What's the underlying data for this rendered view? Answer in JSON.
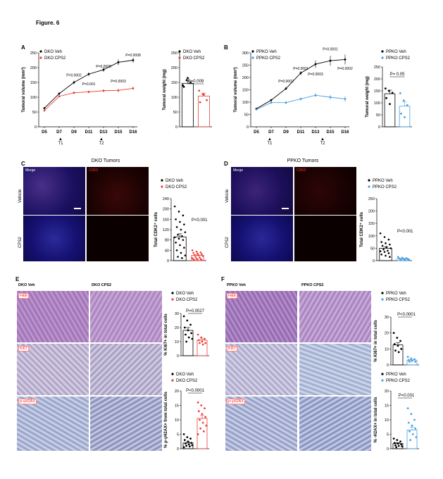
{
  "figure_title": "Figure. 6",
  "panels": {
    "A": "A",
    "B": "B",
    "C": "C",
    "D": "D",
    "E": "E",
    "F": "F"
  },
  "treatment_markers": [
    "T1",
    "T2"
  ],
  "C": {
    "title": "DKO Tumors",
    "row_labels": [
      "Vehicle",
      "CPS2"
    ],
    "col_labels": [
      "Merge",
      "CDK2"
    ]
  },
  "D": {
    "title": "PPKO Tumors",
    "row_labels": [
      "Vehicle",
      "CPS2"
    ],
    "col_labels": [
      "Merge",
      "CDK2"
    ]
  },
  "E": {
    "col_labels": [
      "DKO Veh",
      "DKO CPS2"
    ],
    "stain_labels": [
      "H&E",
      "Ki67",
      "p-γH2AX"
    ]
  },
  "F": {
    "col_labels": [
      "PPKO Veh",
      "PPKO CPS2"
    ],
    "stain_labels": [
      "H&E",
      "Ki67",
      "p-γH2AX"
    ]
  },
  "colors": {
    "veh_black": "#000000",
    "dko_cps2_red": "#e8403a",
    "ppko_cps2_blue": "#4a9fe0",
    "ihc_red": "#ff2222"
  },
  "chart_data": [
    {
      "id": "A-volume",
      "type": "line",
      "x": [
        "D5",
        "D7",
        "D9",
        "D11",
        "D13",
        "D15",
        "D16"
      ],
      "ylabel": "Tumoral volume (mm³)",
      "yticks": [
        0,
        50,
        100,
        150,
        200,
        250
      ],
      "ylim": [
        0,
        250
      ],
      "series": [
        {
          "name": "DKO Veh",
          "color": "#000000",
          "values": [
            63,
            112,
            150,
            178,
            193,
            218,
            225
          ],
          "err": [
            3,
            4,
            6,
            6,
            7,
            10,
            8
          ]
        },
        {
          "name": "DKO CPS2",
          "color": "#e8403a",
          "values": [
            55,
            103,
            115,
            118,
            122,
            123,
            130
          ],
          "err": [
            3,
            3,
            4,
            4,
            5,
            6,
            5
          ]
        }
      ],
      "annotations": [
        {
          "text": "P=0.0002",
          "x": 2,
          "y": 170
        },
        {
          "text": "P=0.001",
          "x": 3,
          "y": 140
        },
        {
          "text": "P=0.0008",
          "x": 4,
          "y": 200
        },
        {
          "text": "P=0.0003",
          "x": 5,
          "y": 150
        },
        {
          "text": "P=0.0008",
          "x": 6,
          "y": 238
        }
      ]
    },
    {
      "id": "A-weight",
      "type": "bar",
      "ylabel": "Tumoral weight (mg)",
      "yticks": [
        0,
        50,
        100,
        150,
        200,
        250
      ],
      "ylim": [
        0,
        250
      ],
      "pvalue": "P=0.009",
      "series": [
        {
          "name": "DKO Veh",
          "color": "#000000",
          "values": [
            147
          ],
          "err": [
            8
          ],
          "points": [
            140,
            158,
            150,
            135,
            165
          ]
        },
        {
          "name": "DKO CPS2",
          "color": "#e8403a",
          "values": [
            104
          ],
          "err": [
            10
          ],
          "points": [
            122,
            110,
            90,
            83,
            108
          ]
        }
      ]
    },
    {
      "id": "B-volume",
      "type": "line",
      "x": [
        "D5",
        "D7",
        "D9",
        "D11",
        "D13",
        "D15",
        "D16"
      ],
      "ylabel": "Tumoral volume (mm³)",
      "yticks": [
        0,
        50,
        100,
        150,
        200,
        250,
        300
      ],
      "ylim": [
        0,
        300
      ],
      "series": [
        {
          "name": "PPKO Veh",
          "color": "#000000",
          "values": [
            73,
            108,
            155,
            218,
            254,
            268,
            273
          ],
          "err": [
            3,
            4,
            6,
            8,
            15,
            20,
            20
          ]
        },
        {
          "name": "PPKO CPS2",
          "color": "#4a9fe0",
          "values": [
            70,
            98,
            98,
            113,
            128,
            120,
            113
          ],
          "err": [
            3,
            4,
            5,
            6,
            8,
            10,
            12
          ]
        }
      ],
      "annotations": [
        {
          "text": "P=0.0002",
          "x": 2,
          "y": 180
        },
        {
          "text": "P=0.0001",
          "x": 3,
          "y": 232
        },
        {
          "text": "P=0.0003",
          "x": 4,
          "y": 208
        },
        {
          "text": "P=0.0001",
          "x": 5,
          "y": 310
        },
        {
          "text": "P=0.0002",
          "x": 6,
          "y": 232
        }
      ]
    },
    {
      "id": "B-weight",
      "type": "bar",
      "ylabel": "Tumoral weight (mg)",
      "yticks": [
        0,
        50,
        100,
        150,
        200,
        250
      ],
      "ylim": [
        0,
        250
      ],
      "pvalue": "P= 0.05",
      "series": [
        {
          "name": "PPKO Veh",
          "color": "#000000",
          "values": [
            138
          ],
          "err": [
            15
          ],
          "points": [
            160,
            150,
            142,
            120,
            95
          ]
        },
        {
          "name": "PPKO CPS2",
          "color": "#4a9fe0",
          "values": [
            86
          ],
          "err": [
            18
          ],
          "points": [
            140,
            110,
            90,
            55,
            40
          ]
        }
      ]
    },
    {
      "id": "C-cdk2",
      "type": "bar",
      "ylabel": "Total CDK2⁺ cells",
      "yticks": [
        0,
        40,
        80,
        120,
        160,
        200,
        240
      ],
      "ylim": [
        0,
        240
      ],
      "pvalue": "P<0.001",
      "series": [
        {
          "name": "DKO Veh",
          "color": "#000000",
          "values": [
            92
          ],
          "err": [
            12
          ],
          "points": [
            210,
            190,
            175,
            160,
            150,
            140,
            130,
            120,
            110,
            100,
            95,
            90,
            85,
            80,
            70,
            60,
            50,
            40,
            30,
            20,
            15,
            10
          ]
        },
        {
          "name": "DKO CPS2",
          "color": "#e8403a",
          "values": [
            20
          ],
          "err": [
            3
          ],
          "points": [
            40,
            35,
            32,
            30,
            28,
            25,
            22,
            20,
            18,
            15,
            12,
            10,
            8,
            6,
            5,
            4,
            3,
            2
          ]
        }
      ]
    },
    {
      "id": "D-cdk2",
      "type": "bar",
      "ylabel": "Total CDK2⁺ cells",
      "yticks": [
        0,
        50,
        100,
        150,
        200,
        250
      ],
      "ylim": [
        0,
        250
      ],
      "pvalue": "P<0.001",
      "series": [
        {
          "name": "PPKO Veh",
          "color": "#000000",
          "values": [
            50
          ],
          "err": [
            6
          ],
          "points": [
            110,
            95,
            85,
            75,
            70,
            65,
            60,
            55,
            50,
            45,
            40,
            38,
            35,
            30,
            25,
            20,
            15
          ]
        },
        {
          "name": "PPKO CPS2",
          "color": "#4a9fe0",
          "values": [
            8
          ],
          "err": [
            1
          ],
          "points": [
            15,
            12,
            10,
            9,
            8,
            7,
            6,
            5,
            4,
            3,
            2
          ]
        }
      ]
    },
    {
      "id": "E-ki67",
      "type": "bar",
      "ylabel": "% Ki67+ in total cells",
      "yticks": [
        0,
        10,
        20,
        30
      ],
      "ylim": [
        0,
        30
      ],
      "pvalue": "P=0.0027",
      "series": [
        {
          "name": "DKO Veh",
          "color": "#000000",
          "values": [
            18
          ],
          "err": [
            2
          ],
          "points": [
            28,
            25,
            22,
            20,
            18,
            16,
            15,
            13,
            12,
            10
          ]
        },
        {
          "name": "DKO CPS2",
          "color": "#e8403a",
          "values": [
            11
          ],
          "err": [
            1
          ],
          "points": [
            15,
            13,
            12,
            11,
            10,
            9,
            9,
            8
          ]
        }
      ]
    },
    {
      "id": "E-h2ax",
      "type": "bar",
      "ylabel": "% p-γH2AX+ from total cells",
      "yticks": [
        0,
        5,
        10,
        15,
        20
      ],
      "ylim": [
        0,
        20
      ],
      "pvalue": "P<0.0001",
      "series": [
        {
          "name": "DKO Veh",
          "color": "#000000",
          "values": [
            2
          ],
          "err": [
            0.4
          ],
          "points": [
            5,
            4,
            3.5,
            3,
            2.5,
            2,
            1.8,
            1.5,
            1.2,
            1,
            0.8,
            0.5
          ]
        },
        {
          "name": "DKO CPS2",
          "color": "#e8403a",
          "values": [
            10.5
          ],
          "err": [
            1
          ],
          "points": [
            16,
            15,
            14,
            13,
            12,
            11,
            10,
            9,
            8,
            7,
            6,
            5
          ]
        }
      ]
    },
    {
      "id": "F-ki67",
      "type": "bar",
      "ylabel": "% Ki67+ in total cells",
      "yticks": [
        0,
        10,
        20,
        30
      ],
      "ylim": [
        0,
        30
      ],
      "pvalue": "P<0.0001",
      "series": [
        {
          "name": "PPKO Veh",
          "color": "#000000",
          "values": [
            12.5
          ],
          "err": [
            1.5
          ],
          "points": [
            20,
            17,
            15,
            13,
            12,
            10,
            9,
            8
          ]
        },
        {
          "name": "PPKO CPS2",
          "color": "#4a9fe0",
          "values": [
            3
          ],
          "err": [
            0.3
          ],
          "points": [
            5,
            4,
            3.5,
            3,
            2.5,
            2,
            2
          ]
        }
      ]
    },
    {
      "id": "F-h2ax",
      "type": "bar",
      "ylabel": "% -H2AX+ in total cells",
      "yticks": [
        0,
        5,
        10,
        15,
        20
      ],
      "ylim": [
        0,
        20
      ],
      "pvalue": "P<0.001",
      "series": [
        {
          "name": "PPKO Veh",
          "color": "#000000",
          "values": [
            1.8
          ],
          "err": [
            0.3
          ],
          "points": [
            3.5,
            3,
            2.5,
            2,
            1.8,
            1.5,
            1.2,
            1,
            0.8,
            0.5
          ]
        },
        {
          "name": "PPKO CPS2",
          "color": "#4a9fe0",
          "values": [
            6.5
          ],
          "err": [
            1
          ],
          "points": [
            14,
            12,
            10,
            9,
            8,
            7,
            6,
            5,
            4,
            3
          ]
        }
      ]
    }
  ]
}
